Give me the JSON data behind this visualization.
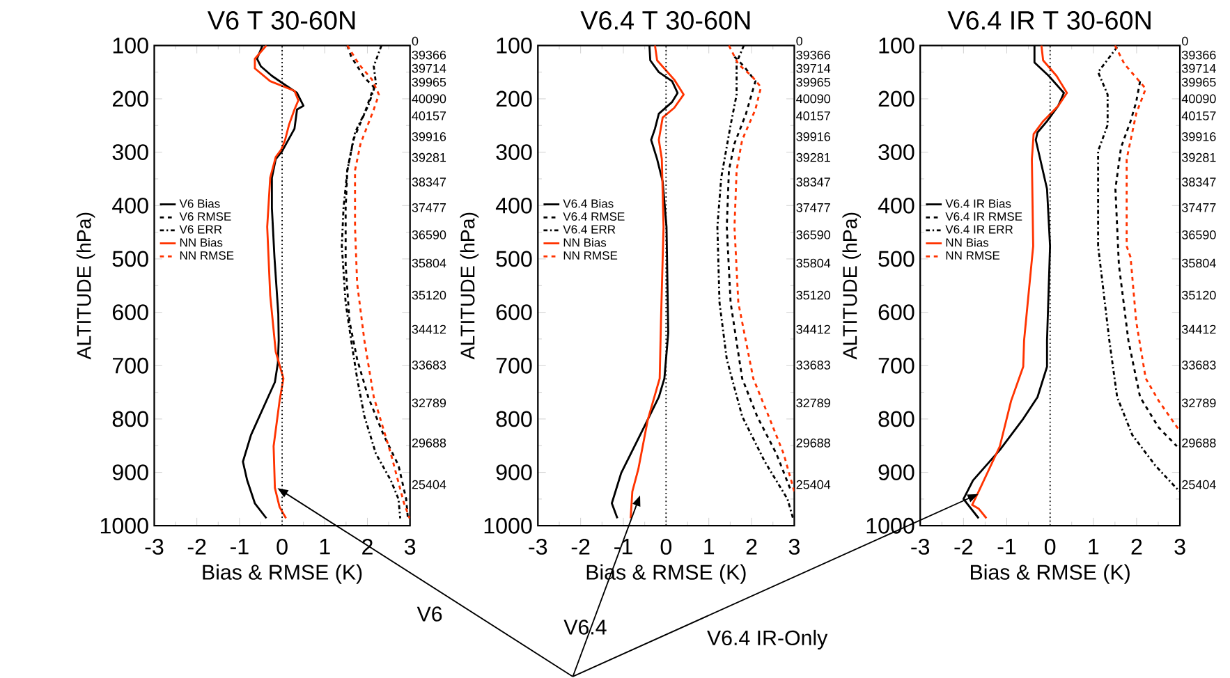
{
  "chart_data": [
    {
      "type": "line",
      "title": "V6 T 30-60N",
      "xlabel": "Bias & RMSE (K)",
      "ylabel": "ALTITUDE (hPa)",
      "xlim": [
        -3,
        3
      ],
      "xticks": [
        -3,
        -2,
        -1,
        0,
        1,
        2,
        3
      ],
      "ylim": [
        1000,
        100
      ],
      "yticks": [
        100,
        200,
        300,
        400,
        500,
        600,
        700,
        800,
        900,
        1000
      ],
      "legend": "top left",
      "ref_lines": [
        {
          "axis": "x",
          "value": 0,
          "line_style": "dotted",
          "color": "#000000"
        }
      ],
      "annotations": [
        "0",
        "39366",
        "39714",
        "39965",
        "40090",
        "40157",
        "39916",
        "39281",
        "38347",
        "37477",
        "36590",
        "35804",
        "35120",
        "34412",
        "33683",
        "32789",
        "29688",
        "25404",
        "V6"
      ],
      "series": [
        {
          "name": "V6 Bias",
          "color": "#000000",
          "line_style": "solid",
          "x": [
            -0.46,
            -0.59,
            -0.5,
            -0.24,
            0.07,
            0.35,
            0.5,
            0.35,
            0.29,
            0,
            -0.15,
            -0.24,
            -0.24,
            -0.18,
            -0.09,
            -0.08,
            -0.1,
            -0.17,
            -0.33,
            -0.73,
            -0.92,
            -0.82,
            -0.64,
            -0.37
          ],
          "values": [
            100,
            125,
            139,
            157,
            174,
            189,
            213,
            220,
            256,
            298,
            313,
            348,
            405,
            497,
            603,
            653,
            695,
            731,
            759,
            830,
            880,
            915,
            958,
            986
          ]
        },
        {
          "name": "V6 RMSE",
          "color": "#000000",
          "line_style": "dashed",
          "x": [
            1.53,
            1.62,
            1.93,
            2.15,
            1.93,
            1.67,
            1.53,
            1.49,
            1.49,
            1.58,
            1.76,
            2.02,
            2.38,
            2.73,
            2.91,
            2.95
          ],
          "values": [
            100,
            121,
            160,
            178,
            228,
            277,
            334,
            405,
            511,
            617,
            688,
            759,
            830,
            887,
            950,
            986
          ]
        },
        {
          "name": "V6 ERR",
          "color": "#000000",
          "line_style": "dashdot",
          "x": [
            2.33,
            2.15,
            2.2,
            2.02,
            1.71,
            1.53,
            1.44,
            1.4,
            1.49,
            1.62,
            1.76,
            1.93,
            2.2,
            2.55,
            2.73,
            2.77
          ],
          "values": [
            100,
            139,
            171,
            213,
            263,
            334,
            405,
            476,
            582,
            653,
            724,
            795,
            865,
            915,
            950,
            986
          ]
        },
        {
          "name": "NN Bias",
          "color": "#ff3300",
          "line_style": "solid",
          "x": [
            -0.37,
            -0.64,
            -0.64,
            -0.28,
            0.29,
            0.38,
            0.29,
            0.16,
            0.07,
            -0.02,
            -0.15,
            -0.28,
            -0.35,
            -0.28,
            -0.15,
            0.03,
            -0.06,
            -0.2,
            -0.17,
            -0.06,
            0.09
          ],
          "values": [
            100,
            125,
            143,
            167,
            185,
            203,
            220,
            249,
            277,
            295,
            309,
            348,
            440,
            568,
            674,
            724,
            766,
            851,
            929,
            965,
            986
          ]
        },
        {
          "name": "NN RMSE",
          "color": "#ff3300",
          "line_style": "dashed",
          "x": [
            1.53,
            1.8,
            2.11,
            2.27,
            2.15,
            1.84,
            1.71,
            1.71,
            1.76,
            1.93,
            2.15,
            2.55,
            2.86,
            2.99
          ],
          "values": [
            100,
            135,
            164,
            192,
            220,
            284,
            334,
            440,
            546,
            653,
            759,
            865,
            958,
            986
          ]
        }
      ]
    },
    {
      "type": "line",
      "title": "V6.4 T 30-60N",
      "xlabel": "Bias & RMSE (K)",
      "ylabel": "ALTITUDE (hPa)",
      "xlim": [
        -3,
        3
      ],
      "xticks": [
        -3,
        -2,
        -1,
        0,
        1,
        2,
        3
      ],
      "ylim": [
        1000,
        100
      ],
      "yticks": [
        100,
        200,
        300,
        400,
        500,
        600,
        700,
        800,
        900,
        1000
      ],
      "legend": "top left",
      "ref_lines": [
        {
          "axis": "x",
          "value": 0,
          "line_style": "dotted",
          "color": "#000000"
        }
      ],
      "annotations": [
        "0",
        "39366",
        "39714",
        "39965",
        "40090",
        "40157",
        "39916",
        "39281",
        "38347",
        "37477",
        "36590",
        "35804",
        "35120",
        "34412",
        "33683",
        "32789",
        "29688",
        "25404",
        "V6.4"
      ],
      "series": [
        {
          "name": "V6.4 Bias",
          "color": "#000000",
          "line_style": "solid",
          "x": [
            -0.39,
            -0.37,
            -0.17,
            0.14,
            0.27,
            0.14,
            -0.17,
            -0.26,
            -0.35,
            -0.21,
            -0.08,
            0.01,
            0.05,
            -0.04,
            -0.17,
            -0.52,
            -1.05,
            -1.27,
            -1.14
          ],
          "values": [
            100,
            128,
            150,
            167,
            189,
            206,
            228,
            256,
            277,
            313,
            355,
            440,
            639,
            724,
            759,
            816,
            901,
            958,
            986
          ]
        },
        {
          "name": "V6.4 RMSE",
          "color": "#000000",
          "line_style": "dashed",
          "x": [
            1.6,
            1.82,
            2.09,
            1.87,
            1.6,
            1.47,
            1.42,
            1.51,
            1.78,
            2.13,
            2.58,
            2.93
          ],
          "values": [
            121,
            139,
            167,
            228,
            284,
            334,
            440,
            582,
            724,
            795,
            865,
            936
          ]
        },
        {
          "name": "V6.4 ERR",
          "color": "#000000",
          "line_style": "dashdot",
          "x": [
            1.82,
            1.65,
            1.65,
            1.51,
            1.29,
            1.2,
            1.25,
            1.42,
            1.78,
            2.31,
            2.84,
            2.97
          ],
          "values": [
            100,
            132,
            192,
            249,
            348,
            440,
            582,
            688,
            795,
            880,
            950,
            986
          ]
        },
        {
          "name": "NN Bias",
          "color": "#ff3300",
          "line_style": "solid",
          "x": [
            -0.26,
            -0.21,
            0.19,
            0.41,
            0.19,
            -0.08,
            -0.17,
            -0.1,
            -0.06,
            -0.12,
            -0.15,
            -0.43,
            -0.65,
            -0.79,
            -0.83
          ],
          "values": [
            100,
            128,
            164,
            192,
            217,
            235,
            277,
            313,
            440,
            617,
            724,
            802,
            894,
            936,
            986
          ]
        },
        {
          "name": "NN RMSE",
          "color": "#ff3300",
          "line_style": "dashed",
          "x": [
            1.47,
            1.69,
            2.0,
            2.22,
            2.09,
            1.78,
            1.65,
            1.6,
            1.69,
            2.04,
            2.4,
            2.75,
            3.0
          ],
          "values": [
            100,
            135,
            157,
            178,
            220,
            277,
            334,
            440,
            582,
            724,
            795,
            865,
            936
          ]
        }
      ]
    },
    {
      "type": "line",
      "title": "V6.4 IR T 30-60N",
      "xlabel": "Bias & RMSE (K)",
      "ylabel": "ALTITUDE (hPa)",
      "xlim": [
        -3,
        3
      ],
      "xticks": [
        -3,
        -2,
        -1,
        0,
        1,
        2,
        3
      ],
      "ylim": [
        1000,
        100
      ],
      "yticks": [
        100,
        200,
        300,
        400,
        500,
        600,
        700,
        800,
        900,
        1000
      ],
      "legend": "top left",
      "ref_lines": [
        {
          "axis": "x",
          "value": 0,
          "line_style": "dotted",
          "color": "#000000"
        }
      ],
      "annotations": [
        "0",
        "39366",
        "39714",
        "39965",
        "40090",
        "40157",
        "39916",
        "39281",
        "38347",
        "37477",
        "36590",
        "35804",
        "35120",
        "34412",
        "33683",
        "32789",
        "29688",
        "25404",
        "V6.4 IR-Only"
      ],
      "series": [
        {
          "name": "V6.4 IR Bias",
          "color": "#000000",
          "line_style": "solid",
          "x": [
            -0.36,
            -0.36,
            -0.03,
            0.32,
            0.19,
            -0.07,
            -0.29,
            -0.33,
            -0.25,
            -0.07,
            0,
            -0.07,
            -0.07,
            -0.29,
            -0.64,
            -1.16,
            -1.78,
            -2.0,
            -1.65
          ],
          "values": [
            100,
            132,
            157,
            189,
            213,
            242,
            263,
            277,
            305,
            369,
            476,
            653,
            702,
            759,
            802,
            858,
            915,
            950,
            986
          ]
        },
        {
          "name": "V6.4 IR RMSE",
          "color": "#000000",
          "line_style": "dashed",
          "x": [
            null,
            null,
            2.08,
            1.99,
            1.86,
            1.64,
            1.51,
            1.59,
            1.81,
            2.08,
            2.51,
            2.93
          ],
          "values": [
            null,
            null,
            167,
            206,
            242,
            291,
            369,
            511,
            653,
            759,
            816,
            851
          ]
        },
        {
          "name": "V6.4 IR ERR",
          "color": "#000000",
          "line_style": "dashdot",
          "x": [
            1.55,
            1.11,
            1.33,
            1.33,
            1.11,
            1.11,
            1.37,
            1.55,
            1.9,
            2.43,
            2.91,
            3.0
          ],
          "values": [
            103,
            150,
            192,
            249,
            298,
            476,
            653,
            759,
            830,
            887,
            929,
            936
          ]
        },
        {
          "name": "NN Bias",
          "color": "#ff3300",
          "line_style": "solid",
          "x": [
            -0.2,
            -0.16,
            0.15,
            0.39,
            0.19,
            -0.16,
            -0.38,
            -0.42,
            -0.39,
            -0.6,
            -0.62,
            -0.9,
            -1.16,
            -1.65,
            -1.8,
            -1.65,
            -1.47
          ],
          "values": [
            100,
            128,
            157,
            189,
            213,
            242,
            266,
            313,
            476,
            653,
            702,
            766,
            851,
            936,
            961,
            968,
            986
          ]
        },
        {
          "name": "NN RMSE",
          "color": "#ff3300",
          "line_style": "dashed",
          "x": [
            1.5,
            1.72,
            2.03,
            2.21,
            1.99,
            1.77,
            1.77,
            1.86,
            1.99,
            2.21,
            2.51,
            3.0
          ],
          "values": [
            100,
            135,
            164,
            181,
            228,
            313,
            476,
            497,
            617,
            724,
            766,
            823
          ]
        }
      ]
    }
  ]
}
